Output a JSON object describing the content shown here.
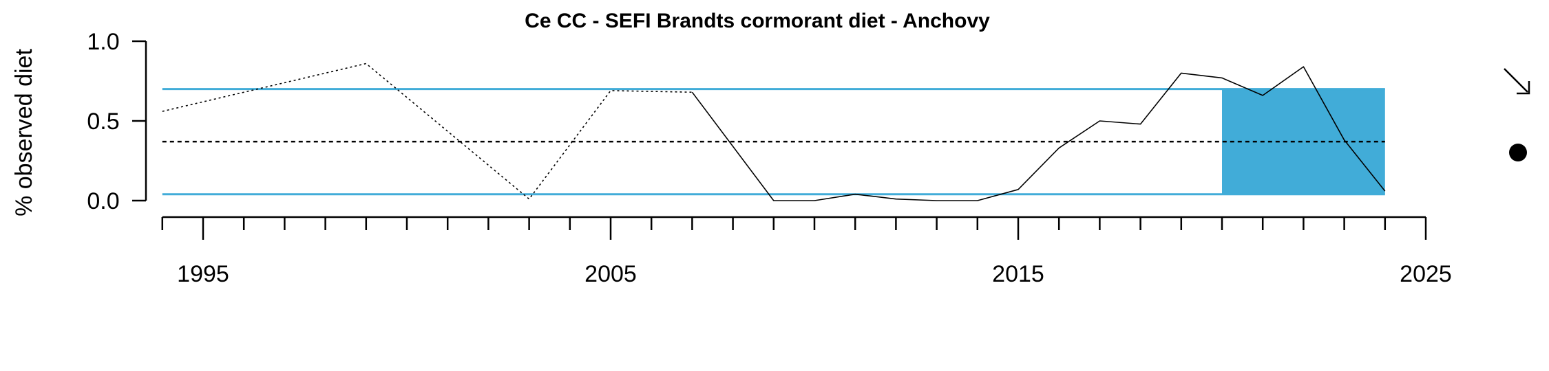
{
  "chart_data": {
    "type": "line",
    "title": "Ce CC - SEFI Brandts cormorant diet - Anchovy",
    "xlabel": "",
    "ylabel": "% observed diet",
    "xlim": [
      1994,
      2025
    ],
    "ylim": [
      0,
      1
    ],
    "x_tick_labels": [
      "1995",
      "2005",
      "2015",
      "2025"
    ],
    "x_tick_values": [
      1995,
      2005,
      2015,
      2025
    ],
    "y_tick_labels": [
      "0.0",
      "0.5",
      "1.0"
    ],
    "y_tick_values": [
      0,
      0.5,
      1
    ],
    "series": [
      {
        "line_style": "dotted",
        "x": [
          1994,
          1999,
          2003,
          2005,
          2007
        ],
        "y": [
          0.56,
          0.86,
          0.01,
          0.69,
          0.68
        ]
      },
      {
        "line_style": "solid",
        "x": [
          2007,
          2009,
          2010,
          2011,
          2012,
          2013,
          2014,
          2015,
          2016,
          2017,
          2018,
          2019,
          2020,
          2021,
          2022,
          2023,
          2024
        ],
        "y": [
          0.68,
          0.0,
          0.0,
          0.04,
          0.01,
          0.0,
          0.0,
          0.07,
          0.33,
          0.5,
          0.48,
          0.8,
          0.77,
          0.66,
          0.84,
          0.38,
          0.06
        ]
      }
    ],
    "mean": 0.37,
    "upper_sd": 0.7,
    "lower_sd": 0.04,
    "recent_window": [
      2020,
      2024
    ],
    "trend_indicator": "decreasing",
    "mean_indicator": "within one standard deviation",
    "colors": {
      "band": "#41acd8",
      "line": "#000000"
    }
  }
}
